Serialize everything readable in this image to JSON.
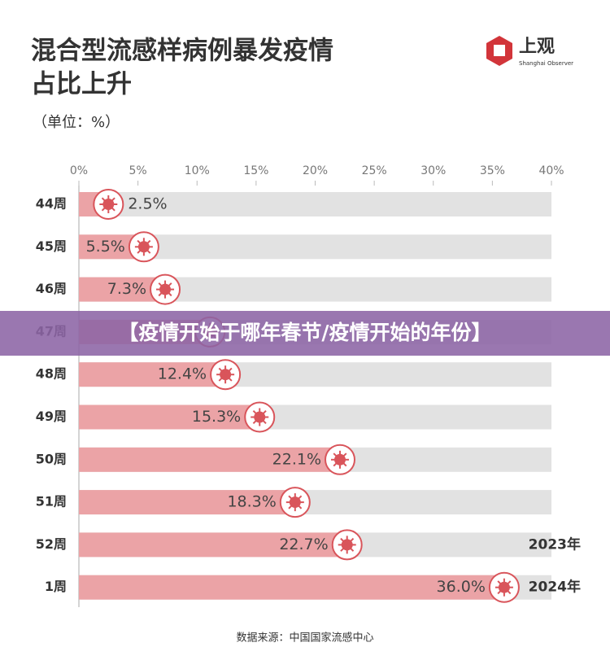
{
  "chart_data": {
    "type": "hbar",
    "title": [
      "混合型流感样病例暴发疫情",
      "占比上升"
    ],
    "subtitle": "（单位：%）",
    "categories": [
      "44周",
      "45周",
      "46周",
      "47周",
      "48周",
      "49周",
      "50周",
      "51周",
      "52周",
      "1周"
    ],
    "values": [
      2.5,
      5.5,
      7.3,
      11.1,
      12.4,
      15.3,
      22.1,
      18.3,
      22.7,
      36.0
    ],
    "value_labels": [
      "2.5%",
      "5.5%",
      "7.3%",
      null,
      "12.4%",
      "15.3%",
      "22.1%",
      "18.3%",
      "22.7%",
      "36.0%"
    ],
    "color": "#eba3a6",
    "xlim": [
      0,
      40
    ],
    "xticks": [
      {
        "value": 0,
        "label": "0%"
      },
      {
        "value": 5,
        "label": "5%"
      },
      {
        "value": 10,
        "label": "10%"
      },
      {
        "value": 15,
        "label": "15%"
      },
      {
        "value": 20,
        "label": "20%"
      },
      {
        "value": 25,
        "label": "25%"
      },
      {
        "value": 30,
        "label": "30%"
      },
      {
        "value": 35,
        "label": "35%"
      },
      {
        "value": 40,
        "label": "40%"
      }
    ],
    "annotations": [
      "2023年",
      "2024年"
    ],
    "source": "数据来源：中国国家流感中心"
  },
  "logo": {
    "name": "上观",
    "english": "Shanghai Observer"
  },
  "banner": "【疫情开始于哪年春节/疫情开始的年份】"
}
